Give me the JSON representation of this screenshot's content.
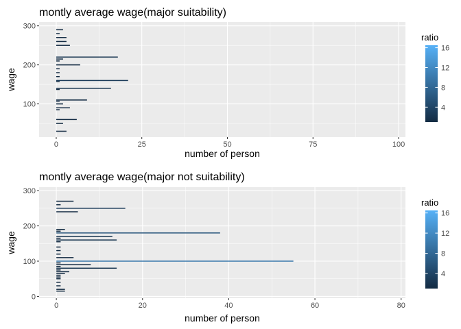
{
  "chart_data": [
    {
      "type": "bar",
      "orientation": "horizontal",
      "title": "montly average wage(major suitability)",
      "xlabel": "number of person",
      "ylabel": "wage",
      "xlim": [
        -5,
        102
      ],
      "ylim": [
        15,
        310
      ],
      "x_ticks": [
        0,
        25,
        50,
        75,
        100
      ],
      "y_ticks": [
        100,
        200,
        300
      ],
      "grid": true,
      "legend": {
        "title": "ratio",
        "position": "right",
        "ticks": [
          4,
          8,
          12,
          16
        ],
        "range": [
          1,
          16.5
        ],
        "low_color": "#132B43",
        "high_color": "#56B1F7"
      },
      "bars": [
        {
          "wage": 290,
          "count": 2,
          "ratio": 1
        },
        {
          "wage": 280,
          "count": 1,
          "ratio": 1
        },
        {
          "wage": 270,
          "count": 3,
          "ratio": 1
        },
        {
          "wage": 260,
          "count": 3,
          "ratio": 1
        },
        {
          "wage": 250,
          "count": 4,
          "ratio": 1
        },
        {
          "wage": 220,
          "count": 18,
          "ratio": 2
        },
        {
          "wage": 215,
          "count": 2,
          "ratio": 1
        },
        {
          "wage": 210,
          "count": 1,
          "ratio": 1
        },
        {
          "wage": 200,
          "count": 7,
          "ratio": 1
        },
        {
          "wage": 190,
          "count": 1,
          "ratio": 1
        },
        {
          "wage": 180,
          "count": 1,
          "ratio": 1
        },
        {
          "wage": 170,
          "count": 1,
          "ratio": 1
        },
        {
          "wage": 160,
          "count": 21,
          "ratio": 3
        },
        {
          "wage": 157,
          "count": 1,
          "ratio": 1
        },
        {
          "wage": 140,
          "count": 16,
          "ratio": 2
        },
        {
          "wage": 137,
          "count": 1,
          "ratio": 1
        },
        {
          "wage": 110,
          "count": 9,
          "ratio": 1
        },
        {
          "wage": 107,
          "count": 1,
          "ratio": 1
        },
        {
          "wage": 100,
          "count": 2,
          "ratio": 1
        },
        {
          "wage": 90,
          "count": 4,
          "ratio": 1
        },
        {
          "wage": 85,
          "count": 1,
          "ratio": 1
        },
        {
          "wage": 60,
          "count": 6,
          "ratio": 1
        },
        {
          "wage": 50,
          "count": 2,
          "ratio": 1
        },
        {
          "wage": 30,
          "count": 3,
          "ratio": 1
        }
      ]
    },
    {
      "type": "bar",
      "orientation": "horizontal",
      "title": "montly average wage(major not suitability)",
      "xlabel": "number of person",
      "ylabel": "wage",
      "xlim": [
        -4,
        81
      ],
      "ylim": [
        -5,
        310
      ],
      "x_ticks": [
        0,
        20,
        40,
        60,
        80
      ],
      "y_ticks": [
        0,
        100,
        200,
        300
      ],
      "grid": true,
      "legend": {
        "title": "ratio",
        "position": "right",
        "ticks": [
          4,
          8,
          12,
          16
        ],
        "range": [
          1,
          16.5
        ],
        "low_color": "#132B43",
        "high_color": "#56B1F7"
      },
      "bars": [
        {
          "wage": 270,
          "count": 4,
          "ratio": 1
        },
        {
          "wage": 260,
          "count": 1,
          "ratio": 1
        },
        {
          "wage": 250,
          "count": 16,
          "ratio": 3
        },
        {
          "wage": 240,
          "count": 5,
          "ratio": 1
        },
        {
          "wage": 190,
          "count": 2,
          "ratio": 1
        },
        {
          "wage": 185,
          "count": 1,
          "ratio": 1
        },
        {
          "wage": 180,
          "count": 38,
          "ratio": 6
        },
        {
          "wage": 170,
          "count": 13,
          "ratio": 2
        },
        {
          "wage": 165,
          "count": 1,
          "ratio": 1
        },
        {
          "wage": 160,
          "count": 14,
          "ratio": 2
        },
        {
          "wage": 155,
          "count": 1,
          "ratio": 1
        },
        {
          "wage": 140,
          "count": 1,
          "ratio": 1
        },
        {
          "wage": 130,
          "count": 1,
          "ratio": 1
        },
        {
          "wage": 120,
          "count": 1,
          "ratio": 1
        },
        {
          "wage": 110,
          "count": 4,
          "ratio": 1
        },
        {
          "wage": 100,
          "count": 55,
          "ratio": 10
        },
        {
          "wage": 95,
          "count": 1,
          "ratio": 1
        },
        {
          "wage": 90,
          "count": 8,
          "ratio": 1
        },
        {
          "wage": 85,
          "count": 1,
          "ratio": 1
        },
        {
          "wage": 80,
          "count": 14,
          "ratio": 2
        },
        {
          "wage": 75,
          "count": 1,
          "ratio": 1
        },
        {
          "wage": 70,
          "count": 3,
          "ratio": 1
        },
        {
          "wage": 65,
          "count": 2,
          "ratio": 1
        },
        {
          "wage": 60,
          "count": 1,
          "ratio": 1
        },
        {
          "wage": 55,
          "count": 1,
          "ratio": 1
        },
        {
          "wage": 50,
          "count": 1,
          "ratio": 1
        },
        {
          "wage": 40,
          "count": 1,
          "ratio": 1
        },
        {
          "wage": 30,
          "count": 1,
          "ratio": 1
        },
        {
          "wage": 20,
          "count": 2,
          "ratio": 1
        },
        {
          "wage": 15,
          "count": 2,
          "ratio": 1
        }
      ]
    }
  ]
}
